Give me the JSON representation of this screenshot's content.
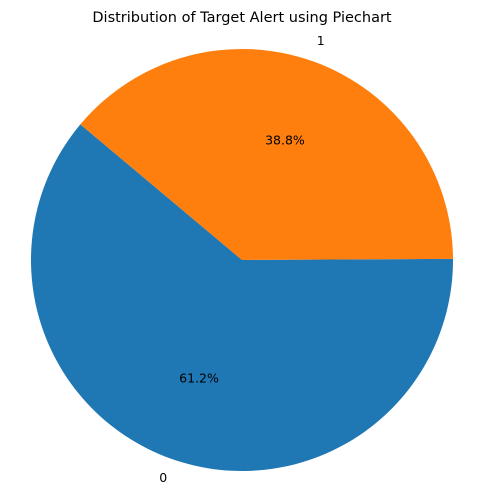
{
  "chart_data": {
    "type": "pie",
    "title": "Distribution of Target Alert using Piechart",
    "labels": [
      "0",
      "1"
    ],
    "values": [
      61.2,
      38.8
    ],
    "percent_labels": [
      "61.2%",
      "38.8%"
    ],
    "colors": [
      "#1f77b4",
      "#ff7f0e"
    ],
    "start_angle_deg": 140,
    "direction": "counterclockwise"
  }
}
